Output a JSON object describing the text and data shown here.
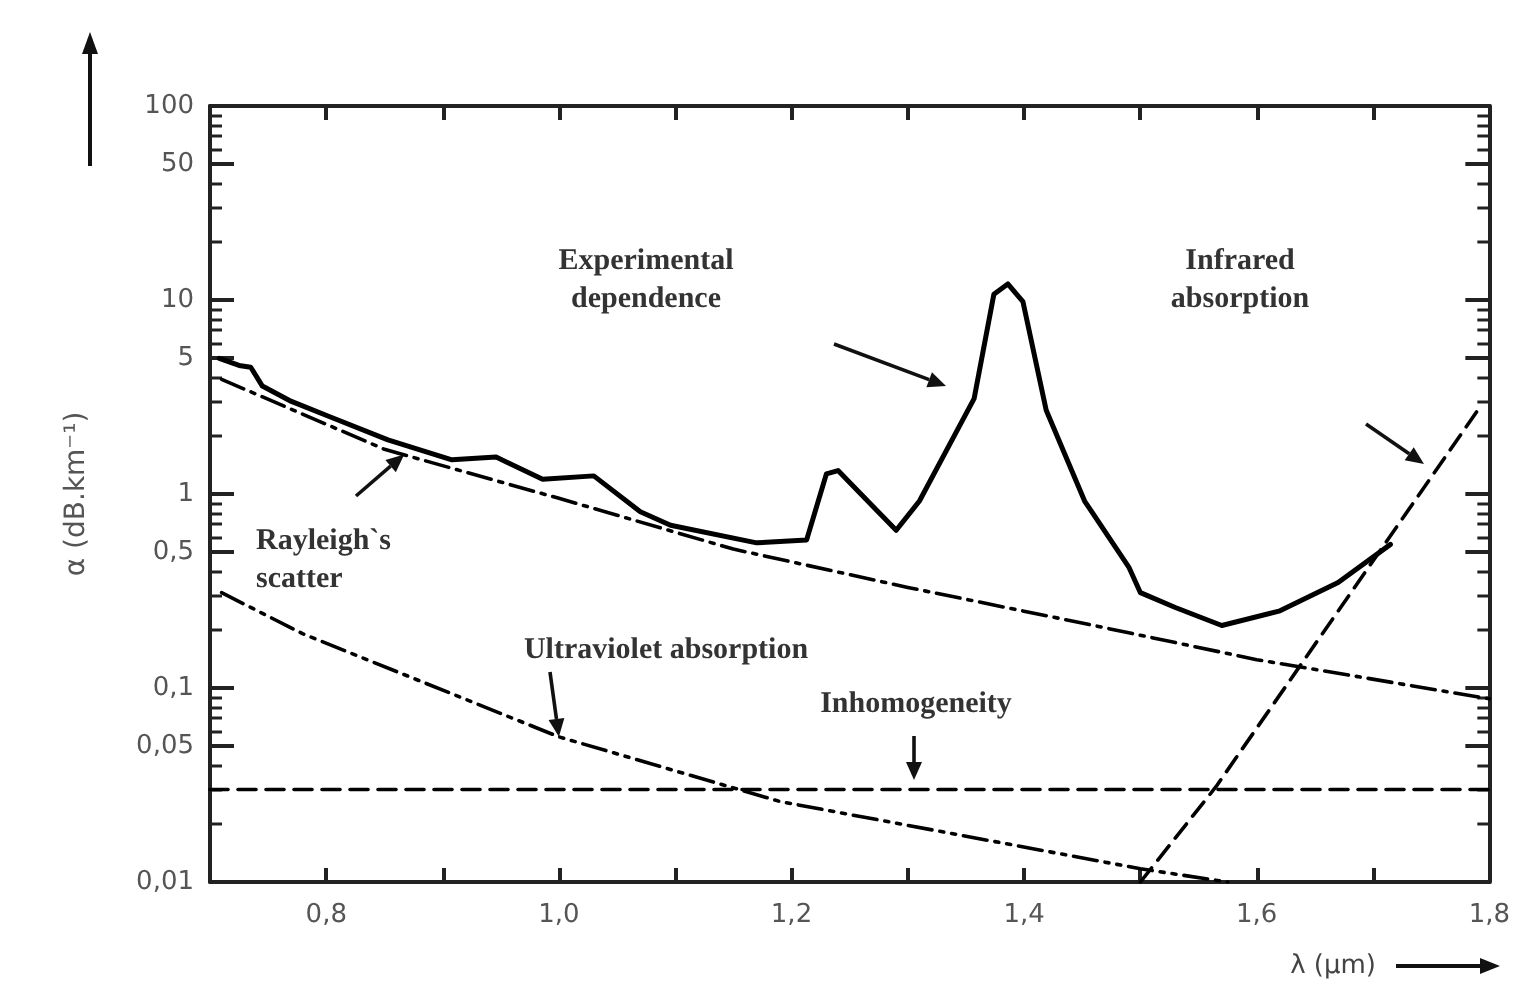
{
  "chart_data": {
    "type": "line",
    "xlabel": "λ (µm)",
    "ylabel": "α (dB.km⁻¹)",
    "xlim": [
      0.7,
      1.8
    ],
    "xticks": [
      {
        "value": 0.8,
        "label": "0,8"
      },
      {
        "value": 0.9,
        "label": null
      },
      {
        "value": 1.0,
        "label": "1,0"
      },
      {
        "value": 1.1,
        "label": null
      },
      {
        "value": 1.2,
        "label": "1,2"
      },
      {
        "value": 1.3,
        "label": null
      },
      {
        "value": 1.4,
        "label": "1,4"
      },
      {
        "value": 1.5,
        "label": null
      },
      {
        "value": 1.6,
        "label": "1,6"
      },
      {
        "value": 1.7,
        "label": null
      },
      {
        "value": 1.8,
        "label": "1,8"
      }
    ],
    "ylim": [
      0.01,
      100
    ],
    "yticks": [
      {
        "value": 0.01,
        "label": "0,01"
      },
      {
        "value": 0.05,
        "label": "0,05"
      },
      {
        "value": 0.1,
        "label": "0,1"
      },
      {
        "value": 0.5,
        "label": "0,5"
      },
      1,
      5,
      10,
      50,
      100
    ],
    "log": "y",
    "grid": false,
    "marker": "none",
    "series": [
      {
        "color": "#000000",
        "line_style": "solid",
        "x": [
          0.708,
          0.725,
          0.735,
          0.745,
          0.77,
          0.803,
          0.853,
          0.908,
          0.946,
          0.986,
          1.03,
          1.07,
          1.096,
          1.17,
          1.213,
          1.23,
          1.24,
          1.29,
          1.31,
          1.357,
          1.374,
          1.386,
          1.399,
          1.419,
          1.452,
          1.49,
          1.5,
          1.53,
          1.57,
          1.62,
          1.67,
          1.715
        ],
        "values": [
          5.0,
          4.6,
          4.5,
          3.6,
          3.0,
          2.5,
          1.9,
          1.5,
          1.55,
          1.19,
          1.24,
          0.81,
          0.69,
          0.56,
          0.58,
          1.27,
          1.32,
          0.65,
          0.92,
          3.1,
          10.7,
          12.1,
          9.8,
          2.7,
          0.92,
          0.42,
          0.31,
          0.26,
          0.21,
          0.25,
          0.35,
          0.55
        ]
      },
      {
        "color": "#000000",
        "line_style": "dashdot",
        "x": [
          0.71,
          0.85,
          1.0,
          1.15,
          1.3,
          1.46,
          1.6,
          1.8
        ],
        "values": [
          3.9,
          1.7,
          0.95,
          0.52,
          0.33,
          0.21,
          0.14,
          0.088
        ]
      },
      {
        "color": "#000000",
        "line_style": "dashdotdot",
        "x": [
          0.71,
          0.78,
          1.0,
          1.19,
          1.5,
          1.575
        ],
        "values": [
          0.31,
          0.19,
          0.056,
          0.026,
          0.0117,
          0.01
        ]
      },
      {
        "color": "#000000",
        "line_style": "dashed",
        "x": [
          0.7,
          1.8
        ],
        "values": [
          0.03,
          0.03
        ]
      },
      {
        "color": "#000000",
        "line_style": "dashed",
        "x": [
          1.5,
          1.565,
          1.79
        ],
        "values": [
          0.01,
          0.031,
          2.7
        ]
      }
    ],
    "annotations": [
      "Experimental\ndependence",
      "Infrared\nabsorption",
      {
        "text": "Rayleigh`s\nscatter",
        "x": 0.867,
        "y": 1.6
      },
      {
        "text": "Ultraviolet absorption",
        "x": 1.0,
        "y": 0.056
      },
      "Inhomogeneity"
    ]
  }
}
